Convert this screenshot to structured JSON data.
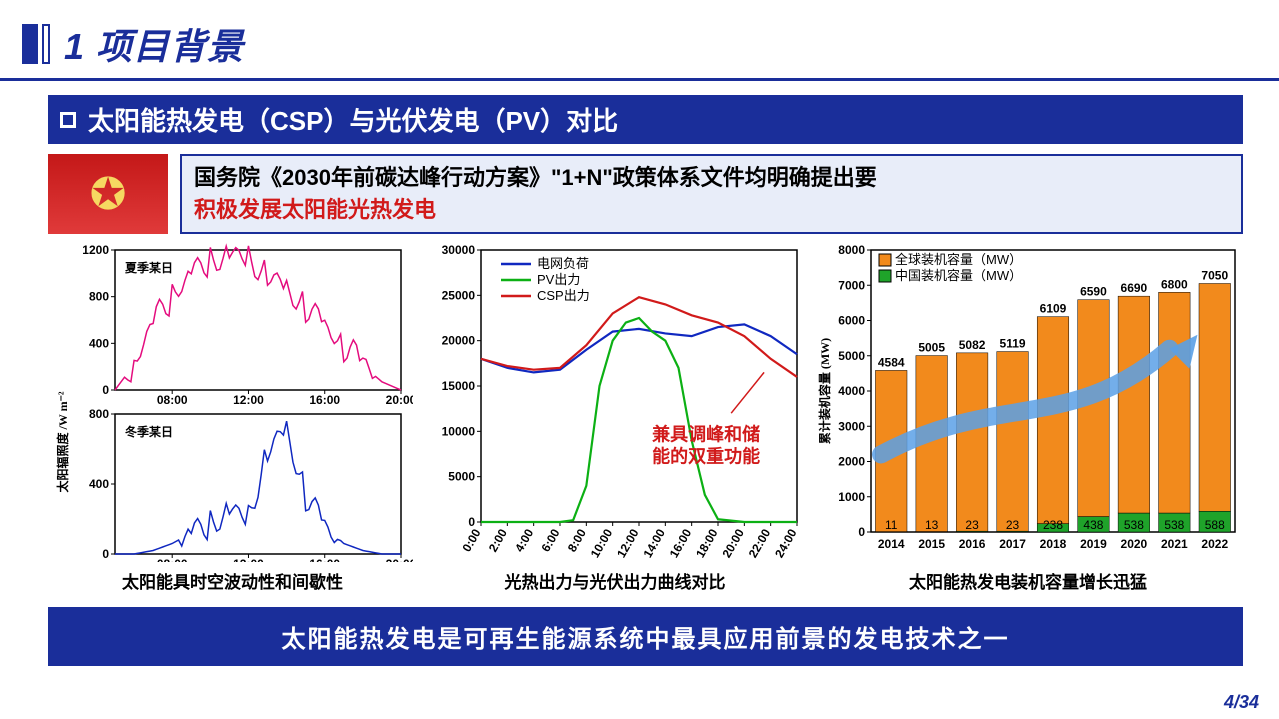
{
  "header": {
    "title": "1 项目背景"
  },
  "subtitle": "太阳能热发电（CSP）与光伏发电（PV）对比",
  "policy": {
    "line1": "国务院《2030年前碳达峰行动方案》\"1+N\"政策体系文件均明确提出要",
    "line2": "积极发展太阳能光热发电"
  },
  "irradiance": {
    "type": "line",
    "ylabel": "太阳辐照度 /W m⁻²",
    "x_ticks": [
      "08:00",
      "12:00",
      "16:00",
      "20:00"
    ],
    "summer": {
      "label": "夏季某日",
      "ylim": [
        0,
        1200
      ],
      "yticks": [
        0,
        400,
        800,
        1200
      ],
      "color": "#e40c7e",
      "x": [
        5,
        6,
        7,
        8,
        9,
        10,
        11,
        12,
        13,
        14,
        15,
        16,
        17,
        18,
        19,
        20
      ],
      "y": [
        0,
        220,
        560,
        820,
        1000,
        1120,
        1180,
        1150,
        1000,
        880,
        720,
        550,
        380,
        210,
        70,
        0
      ]
    },
    "winter": {
      "label": "冬季某日",
      "ylim": [
        0,
        800
      ],
      "yticks": [
        0,
        400,
        800
      ],
      "color": "#1028c0",
      "x": [
        5,
        6,
        7,
        8,
        9,
        10,
        11,
        12,
        13,
        14,
        15,
        16,
        17,
        18,
        19,
        20
      ],
      "y": [
        0,
        0,
        20,
        60,
        120,
        180,
        260,
        220,
        600,
        720,
        340,
        160,
        60,
        20,
        0,
        0
      ]
    },
    "caption": "太阳能具时空波动性和间歇性"
  },
  "output_compare": {
    "type": "line",
    "xlabel_ticks": [
      "0:00",
      "2:00",
      "4:00",
      "6:00",
      "8:00",
      "10:00",
      "12:00",
      "14:00",
      "16:00",
      "18:00",
      "20:00",
      "22:00",
      "24:00"
    ],
    "ylim": [
      0,
      30000
    ],
    "yticks": [
      0,
      5000,
      10000,
      15000,
      20000,
      25000,
      30000
    ],
    "series": {
      "grid": {
        "label": "电网负荷",
        "color": "#1028c0",
        "x": [
          0,
          2,
          4,
          6,
          8,
          10,
          12,
          14,
          16,
          18,
          20,
          22,
          24
        ],
        "y": [
          18000,
          17000,
          16500,
          16800,
          19000,
          21000,
          21300,
          20800,
          20500,
          21500,
          21800,
          20500,
          18500
        ]
      },
      "pv": {
        "label": "PV出力",
        "color": "#0cb014",
        "x": [
          0,
          2,
          4,
          6,
          7,
          8,
          9,
          10,
          11,
          12,
          13,
          14,
          15,
          16,
          17,
          18,
          20,
          22,
          24
        ],
        "y": [
          0,
          0,
          0,
          0,
          200,
          4000,
          15000,
          20000,
          22000,
          22500,
          21000,
          20000,
          17000,
          9000,
          3000,
          300,
          0,
          0,
          0
        ]
      },
      "csp": {
        "label": "CSP出力",
        "color": "#d11a1a",
        "x": [
          0,
          2,
          4,
          6,
          8,
          10,
          12,
          14,
          16,
          18,
          20,
          22,
          24
        ],
        "y": [
          18000,
          17200,
          16800,
          17000,
          19500,
          23000,
          24800,
          24000,
          22800,
          22000,
          20500,
          18000,
          16000
        ]
      }
    },
    "annotation": [
      "兼具调峰和储",
      "能的双重功能"
    ],
    "caption": "光热出力与光伏出力曲线对比"
  },
  "capacity": {
    "type": "bar",
    "ylabel": "累计装机容量 (MW)",
    "ylim": [
      0,
      8000
    ],
    "yticks": [
      0,
      1000,
      2000,
      3000,
      4000,
      5000,
      6000,
      7000,
      8000
    ],
    "categories": [
      "2014",
      "2015",
      "2016",
      "2017",
      "2018",
      "2019",
      "2020",
      "2021",
      "2022"
    ],
    "global": {
      "label": "全球装机容量（MW）",
      "color": "#f28a1c",
      "values": [
        4584,
        5005,
        5082,
        5119,
        6109,
        6590,
        6690,
        6800,
        7050
      ]
    },
    "china": {
      "label": "中国装机容量（MW）",
      "color": "#1fa32a",
      "values": [
        11,
        13,
        23,
        23,
        238,
        438,
        538,
        538,
        588
      ]
    },
    "caption": "太阳能热发电装机容量增长迅猛"
  },
  "footer": "太阳能热发电是可再生能源系统中最具应用前景的发电技术之一",
  "page": {
    "current": 4,
    "total": 34,
    "display": "4/34"
  }
}
